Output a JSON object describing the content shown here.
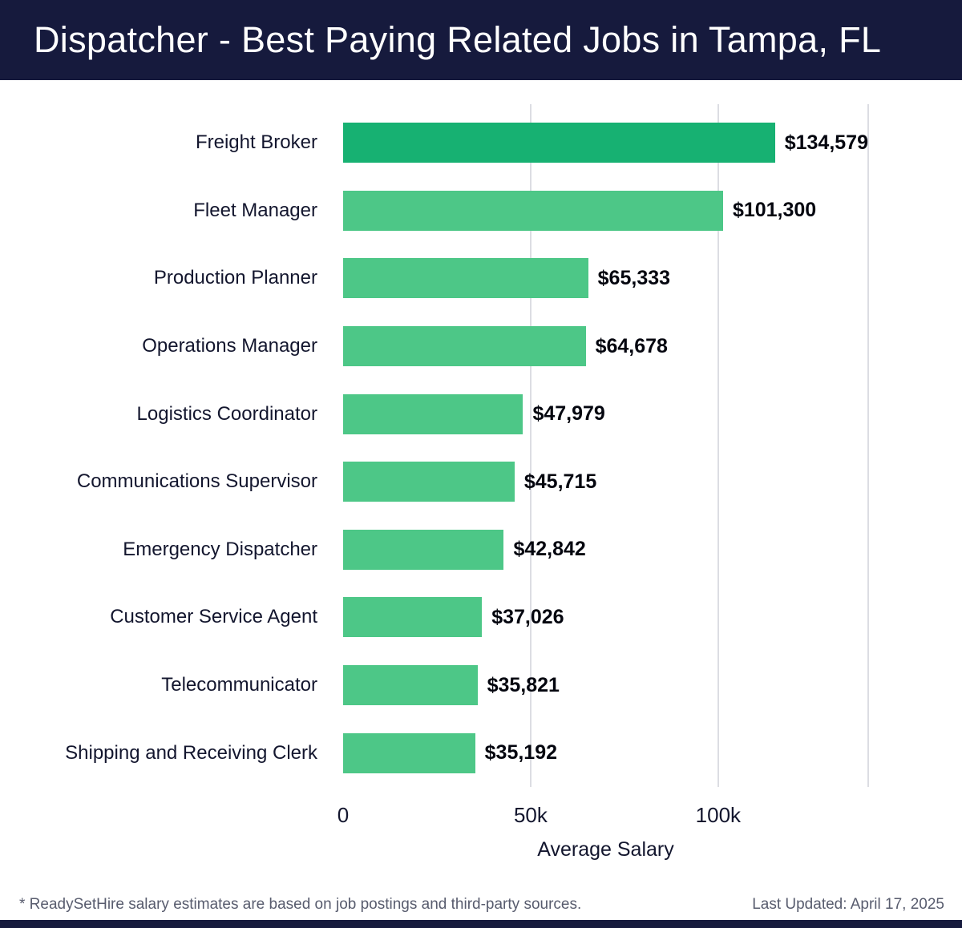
{
  "header": {
    "title": "Dispatcher - Best Paying Related Jobs in Tampa, FL"
  },
  "chart_data": {
    "type": "bar",
    "orientation": "horizontal",
    "title": "Dispatcher - Best Paying Related Jobs in Tampa, FL",
    "categories": [
      "Freight Broker",
      "Fleet Manager",
      "Production Planner",
      "Operations Manager",
      "Logistics Coordinator",
      "Communications Supervisor",
      "Emergency Dispatcher",
      "Customer Service Agent",
      "Telecommunicator",
      "Shipping and Receiving Clerk"
    ],
    "values": [
      134579,
      101300,
      65333,
      64678,
      47979,
      45715,
      42842,
      37026,
      35821,
      35192
    ],
    "value_labels": [
      "$134,579",
      "$101,300",
      "$65,333",
      "$64,678",
      "$47,979",
      "$45,715",
      "$42,842",
      "$37,026",
      "$35,821",
      "$35,192"
    ],
    "xlabel": "Average Salary",
    "xlim": [
      0,
      140000
    ],
    "x_ticks": [
      {
        "value": 0,
        "label": "0"
      },
      {
        "value": 50000,
        "label": "50k"
      },
      {
        "value": 100000,
        "label": "100k"
      }
    ],
    "grid": "vertical",
    "legend": "none",
    "colors": {
      "highlight_bar": "#17b172",
      "bar": "#4dc787",
      "header_bg": "#161a3d",
      "gridline": "#dcdde3",
      "label_text": "#13162e",
      "value_text": "#04060f",
      "footer_text": "#585c6e"
    },
    "highlight_index": 0
  },
  "footer": {
    "note": "* ReadySetHire salary estimates are based on job postings and third-party sources.",
    "updated": "Last Updated: April 17, 2025"
  }
}
